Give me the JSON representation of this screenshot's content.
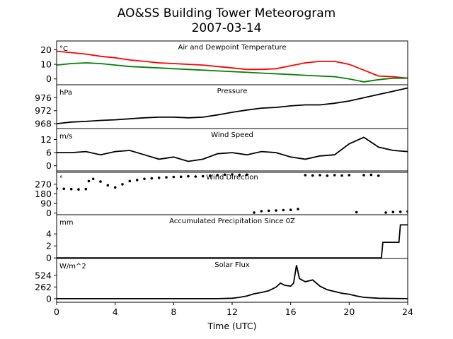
{
  "title_line1": "AO&SS Building Tower Meteorogram",
  "title_line2": "2007-03-14",
  "xlabel": "Time (UTC)",
  "x_ticks": [
    "0",
    "4",
    "8",
    "12",
    "16",
    "20",
    "24"
  ],
  "colors": {
    "temperature": "#ff0000",
    "dewpoint": "#008000",
    "other": "#000000"
  },
  "chart_data": [
    {
      "type": "line",
      "title": "Air and Dewpoint Temperature",
      "unit": "°C",
      "ylim": [
        -4,
        26
      ],
      "y_ticks": [
        20,
        10,
        0
      ],
      "x": [
        0,
        1,
        2,
        3,
        4,
        5,
        6,
        7,
        8,
        9,
        10,
        11,
        12,
        13,
        14,
        15,
        16,
        17,
        18,
        19,
        20,
        21,
        22,
        23,
        24
      ],
      "series": [
        {
          "name": "",
          "color_key": "temperature",
          "values": [
            19,
            18,
            17,
            15.5,
            14.5,
            13,
            12,
            11,
            10.5,
            10,
            9.5,
            8.5,
            7.5,
            6.5,
            6.5,
            7,
            9,
            11,
            12,
            12,
            10,
            6,
            2,
            1.5,
            0.5
          ]
        },
        {
          "name": "",
          "color_key": "dewpoint",
          "values": [
            9.5,
            10.5,
            11,
            10.5,
            9.5,
            8.5,
            8,
            7.5,
            7,
            6.5,
            6,
            5.5,
            5,
            4.5,
            4,
            3.5,
            3,
            2.5,
            2,
            1.5,
            0,
            -2,
            -0.5,
            0.5,
            0.5
          ]
        }
      ]
    },
    {
      "type": "line",
      "title": "Pressure",
      "unit": "hPa",
      "ylim": [
        966.5,
        980
      ],
      "y_ticks": [
        976,
        972,
        968
      ],
      "x": [
        0,
        1,
        2,
        3,
        4,
        5,
        6,
        7,
        8,
        9,
        10,
        11,
        12,
        13,
        14,
        15,
        16,
        17,
        18,
        19,
        20,
        21,
        22,
        23,
        24
      ],
      "series": [
        {
          "name": "",
          "color_key": "other",
          "values": [
            968,
            968.5,
            968.7,
            969,
            969.2,
            969.5,
            969.8,
            970,
            970,
            969.8,
            970,
            970.7,
            971.5,
            972.2,
            972.8,
            973,
            973.5,
            973.8,
            973.8,
            974.3,
            975,
            976,
            977,
            978,
            979
          ]
        }
      ]
    },
    {
      "type": "line",
      "title": "Wind Speed",
      "unit": "m/s",
      "ylim": [
        -3,
        17
      ],
      "y_ticks": [
        12,
        6,
        0
      ],
      "x": [
        0,
        1,
        2,
        3,
        4,
        5,
        6,
        7,
        8,
        9,
        10,
        11,
        12,
        13,
        14,
        15,
        16,
        17,
        18,
        19,
        20,
        21,
        22,
        23,
        24
      ],
      "series": [
        {
          "name": "",
          "color_key": "other",
          "values": [
            6,
            6,
            6.5,
            5,
            6.5,
            7,
            5,
            3,
            4,
            2,
            3,
            5.5,
            6,
            5,
            6.5,
            6,
            4,
            3,
            4.5,
            5,
            10,
            13,
            8.5,
            7,
            6.5
          ]
        }
      ]
    },
    {
      "type": "scatter",
      "title": "Wind Direction",
      "unit": "°",
      "ylim": [
        -15,
        395
      ],
      "y_ticks": [
        270,
        180,
        90,
        0
      ],
      "x": [
        0,
        0.5,
        1,
        1.5,
        2,
        2.2,
        2.5,
        3,
        3.5,
        4,
        4.5,
        5,
        5.5,
        6,
        6.5,
        7,
        7.5,
        8,
        8.5,
        9,
        9.5,
        10,
        10.5,
        11,
        11.5,
        12,
        12.5,
        13,
        13.5,
        14,
        14.5,
        15,
        15.5,
        16,
        16.5,
        17,
        17.5,
        18,
        18.5,
        19,
        19.5,
        20,
        20.5,
        21,
        21.5,
        22,
        22.5,
        23,
        23.5,
        24
      ],
      "series": [
        {
          "name": "",
          "color_key": "other",
          "values": [
            230,
            228,
            225,
            222,
            225,
            300,
            320,
            295,
            260,
            240,
            270,
            300,
            310,
            320,
            325,
            330,
            335,
            338,
            340,
            345,
            342,
            345,
            350,
            355,
            360,
            362,
            358,
            360,
            5,
            18,
            22,
            25,
            28,
            30,
            38,
            355,
            352,
            355,
            350,
            355,
            352,
            355,
            8,
            355,
            358,
            350,
            5,
            10,
            12,
            15
          ]
        }
      ]
    },
    {
      "type": "line",
      "title": "Accumulated Precipitation Since 0Z",
      "unit": "mm",
      "ylim": [
        -0.1,
        7.2
      ],
      "y_ticks": [
        4,
        2,
        0
      ],
      "x": [
        0,
        22.2,
        22.3,
        23.4,
        23.5,
        24
      ],
      "series": [
        {
          "name": "",
          "color_key": "other",
          "values": [
            0,
            0,
            2.6,
            2.6,
            5.5,
            5.5
          ]
        }
      ]
    },
    {
      "type": "line",
      "title": "Solar Flux",
      "unit": "W/m^2",
      "ylim": [
        -80,
        900
      ],
      "y_ticks": [
        524,
        262,
        0
      ],
      "x": [
        0,
        11,
        12,
        12.5,
        13,
        13.5,
        14,
        14.5,
        15,
        15.3,
        15.6,
        16,
        16.2,
        16.4,
        16.6,
        17,
        17.5,
        18,
        18.5,
        19,
        19.5,
        20,
        20.5,
        21,
        22,
        23,
        24
      ],
      "series": [
        {
          "name": "",
          "color_key": "other",
          "values": [
            0,
            0,
            10,
            30,
            60,
            110,
            140,
            180,
            260,
            350,
            300,
            280,
            350,
            750,
            450,
            380,
            420,
            280,
            200,
            160,
            120,
            100,
            60,
            30,
            10,
            5,
            0
          ]
        }
      ]
    }
  ]
}
